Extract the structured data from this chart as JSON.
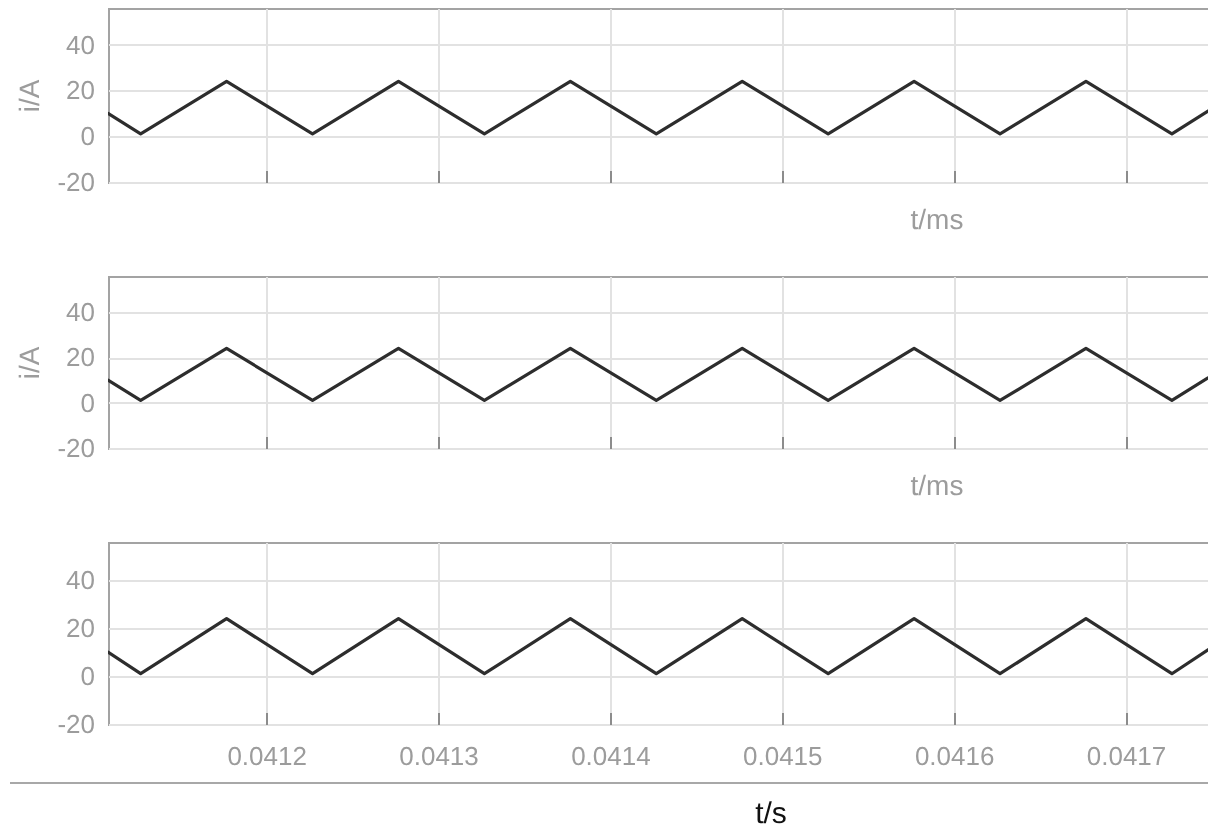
{
  "chart_data": [
    {
      "type": "line",
      "ylabel": "i/A",
      "xlabel": "t/ms",
      "x": [
        0.041108,
        0.041127,
        0.041177,
        0.041227,
        0.041277,
        0.041327,
        0.041377,
        0.041427,
        0.041477,
        0.041527,
        0.041577,
        0.041627,
        0.041677,
        0.041727,
        0.041748
      ],
      "series": [
        {
          "color": "#2d2d2d",
          "values": [
            10,
            1,
            24,
            1,
            24,
            1,
            24,
            1,
            24,
            1,
            24,
            1,
            24,
            1,
            11
          ]
        }
      ],
      "xlim": [
        0.041108,
        0.041748
      ],
      "xticks": [
        0.0412,
        0.0413,
        0.0414,
        0.0415,
        0.0416,
        0.0417
      ],
      "ylim": [
        -20,
        56
      ],
      "yticks": [
        -20,
        0,
        20,
        40
      ],
      "grid": true,
      "tick_labels": "y"
    },
    {
      "type": "line",
      "ylabel": "i/A",
      "xlabel": "t/ms",
      "x": [
        0.041108,
        0.041127,
        0.041177,
        0.041227,
        0.041277,
        0.041327,
        0.041377,
        0.041427,
        0.041477,
        0.041527,
        0.041577,
        0.041627,
        0.041677,
        0.041727,
        0.041748
      ],
      "series": [
        {
          "color": "#2d2d2d",
          "values": [
            10,
            1,
            24,
            1,
            24,
            1,
            24,
            1,
            24,
            1,
            24,
            1,
            24,
            1,
            11
          ]
        }
      ],
      "xlim": [
        0.041108,
        0.041748
      ],
      "xticks": [
        0.0412,
        0.0413,
        0.0414,
        0.0415,
        0.0416,
        0.0417
      ],
      "ylim": [
        -20,
        56
      ],
      "yticks": [
        -20,
        0,
        20,
        40
      ],
      "grid": true,
      "tick_labels": "y"
    },
    {
      "type": "line",
      "xlabel": "t/s",
      "x": [
        0.041108,
        0.041127,
        0.041177,
        0.041227,
        0.041277,
        0.041327,
        0.041377,
        0.041427,
        0.041477,
        0.041527,
        0.041577,
        0.041627,
        0.041677,
        0.041727,
        0.041748
      ],
      "series": [
        {
          "color": "#2d2d2d",
          "values": [
            10,
            1,
            24,
            1,
            24,
            1,
            24,
            1,
            24,
            1,
            24,
            1,
            24,
            1,
            11
          ]
        }
      ],
      "xlim": [
        0.041108,
        0.041748
      ],
      "xticks": [
        0.0412,
        0.0413,
        0.0414,
        0.0415,
        0.0416,
        0.0417
      ],
      "ylim": [
        -20,
        56
      ],
      "yticks": [
        -20,
        0,
        20,
        40
      ],
      "grid": true
    }
  ]
}
